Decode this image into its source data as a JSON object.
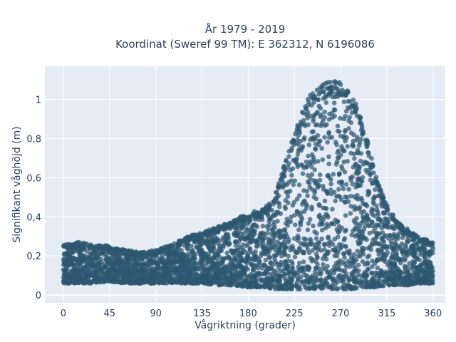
{
  "chart_data": {
    "type": "scatter",
    "title": [
      "År 1979 - 2019",
      "Koordinat (Sweref 99 TM): E 362312, N 6196086"
    ],
    "xlabel": "Vågriktning (grader)",
    "ylabel": "Signifikant våghöjd (m)",
    "xlim": [
      -18,
      372
    ],
    "ylim": [
      -0.04,
      1.17
    ],
    "x_ticks": [
      0,
      45,
      90,
      135,
      180,
      225,
      270,
      315,
      360
    ],
    "x_tick_labels": [
      "0",
      "45",
      "90",
      "135",
      "180",
      "225",
      "270",
      "315",
      "360"
    ],
    "y_ticks": [
      0,
      0.2,
      0.4,
      0.6,
      0.8,
      1
    ],
    "y_tick_labels": [
      "0",
      "0,2",
      "0,4",
      "0,6",
      "0,8",
      "1"
    ],
    "grid": true,
    "marker_color": "#2e5870",
    "plot_background": "#e5ecf6",
    "envelope": {
      "direction": [
        0,
        15,
        30,
        45,
        60,
        75,
        90,
        105,
        120,
        135,
        150,
        165,
        180,
        195,
        205,
        215,
        225,
        235,
        245,
        255,
        265,
        275,
        285,
        295,
        305,
        315,
        325,
        335,
        345,
        355,
        360
      ],
      "lower": [
        0.06,
        0.06,
        0.06,
        0.07,
        0.06,
        0.06,
        0.06,
        0.06,
        0.06,
        0.06,
        0.05,
        0.05,
        0.04,
        0.04,
        0.03,
        0.03,
        0.03,
        0.03,
        0.03,
        0.03,
        0.03,
        0.03,
        0.03,
        0.04,
        0.04,
        0.05,
        0.05,
        0.05,
        0.06,
        0.06,
        0.06
      ],
      "upper": [
        0.26,
        0.27,
        0.26,
        0.25,
        0.23,
        0.22,
        0.23,
        0.26,
        0.3,
        0.32,
        0.35,
        0.38,
        0.42,
        0.44,
        0.5,
        0.66,
        0.84,
        0.98,
        1.06,
        1.09,
        1.1,
        1.07,
        0.98,
        0.82,
        0.6,
        0.46,
        0.38,
        0.34,
        0.3,
        0.28,
        0.27
      ]
    }
  }
}
